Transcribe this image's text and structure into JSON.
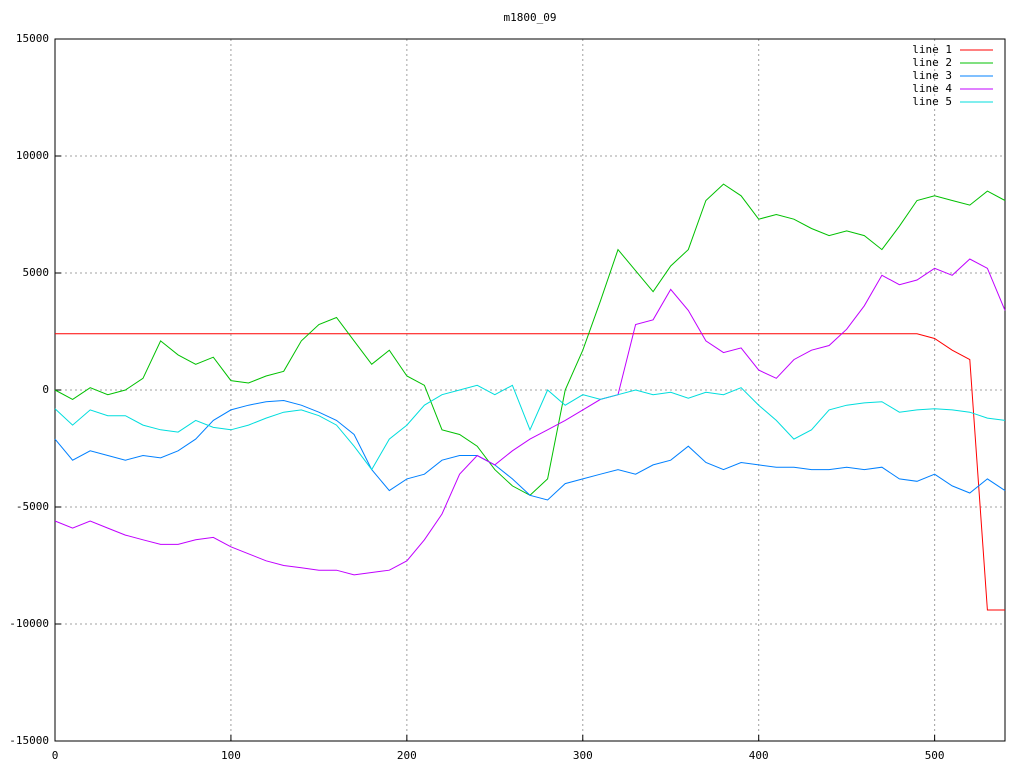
{
  "chart_data": {
    "type": "line",
    "title": "m1800_09",
    "x": [
      0,
      10,
      20,
      30,
      40,
      50,
      60,
      70,
      80,
      90,
      100,
      110,
      120,
      130,
      140,
      150,
      160,
      170,
      180,
      190,
      200,
      210,
      220,
      230,
      240,
      250,
      260,
      270,
      280,
      290,
      300,
      310,
      320,
      330,
      340,
      350,
      360,
      370,
      380,
      390,
      400,
      410,
      420,
      430,
      440,
      450,
      460,
      470,
      480,
      490,
      500,
      510,
      520,
      530,
      540
    ],
    "xlim": [
      0,
      540
    ],
    "xticks": [
      0,
      100,
      200,
      300,
      400,
      500
    ],
    "ylim": [
      -15000,
      15000
    ],
    "yticks": [
      -15000,
      -10000,
      -5000,
      0,
      5000,
      10000,
      15000
    ],
    "grid": true,
    "legend": "top-right",
    "series": [
      {
        "name": "line 1",
        "color": "#ff0000",
        "values": [
          2400,
          2400,
          2400,
          2400,
          2400,
          2400,
          2400,
          2400,
          2400,
          2400,
          2400,
          2400,
          2400,
          2400,
          2400,
          2400,
          2400,
          2400,
          2400,
          2400,
          2400,
          2400,
          2400,
          2400,
          2400,
          2400,
          2400,
          2400,
          2400,
          2400,
          2400,
          2400,
          2400,
          2400,
          2400,
          2400,
          2400,
          2400,
          2400,
          2400,
          2400,
          2400,
          2400,
          2400,
          2400,
          2400,
          2400,
          2400,
          2400,
          2400,
          2200,
          1700,
          1300,
          -9400,
          -9400
        ]
      },
      {
        "name": "line 2",
        "color": "#00c000",
        "values": [
          0,
          -400,
          100,
          -200,
          0,
          500,
          2100,
          1500,
          1100,
          1400,
          400,
          300,
          600,
          800,
          2100,
          2800,
          3100,
          2100,
          1100,
          1700,
          600,
          200,
          -1700,
          -1900,
          -2400,
          -3400,
          -4100,
          -4500,
          -3800,
          0,
          1700,
          3800,
          6000,
          5100,
          4200,
          5300,
          6000,
          8100,
          8800,
          8300,
          7300,
          7500,
          7300,
          6900,
          6600,
          6800,
          6600,
          6000,
          7000,
          8100,
          8300,
          8100,
          7900,
          8500,
          8100
        ]
      },
      {
        "name": "line 3",
        "color": "#0080ff",
        "values": [
          -2100,
          -3000,
          -2600,
          -2800,
          -3000,
          -2800,
          -2900,
          -2600,
          -2100,
          -1300,
          -850,
          -650,
          -500,
          -450,
          -650,
          -950,
          -1300,
          -1900,
          -3400,
          -4300,
          -3800,
          -3600,
          -3000,
          -2800,
          -2800,
          -3200,
          -3800,
          -4500,
          -4700,
          -4000,
          -3800,
          -3600,
          -3400,
          -3600,
          -3200,
          -3000,
          -2400,
          -3100,
          -3400,
          -3100,
          -3200,
          -3300,
          -3300,
          -3400,
          -3400,
          -3300,
          -3400,
          -3300,
          -3800,
          -3900,
          -3600,
          -4100,
          -4400,
          -3800,
          -4300
        ]
      },
      {
        "name": "line 4",
        "color": "#c000ff",
        "values": [
          -5600,
          -5900,
          -5600,
          -5900,
          -6200,
          -6400,
          -6600,
          -6600,
          -6400,
          -6300,
          -6700,
          -7000,
          -7300,
          -7500,
          -7600,
          -7700,
          -7700,
          -7900,
          -7800,
          -7700,
          -7300,
          -6400,
          -5300,
          -3600,
          -2800,
          -3200,
          -2600,
          -2100,
          -1700,
          -1300,
          -850,
          -400,
          -200,
          2800,
          3000,
          4300,
          3400,
          2100,
          1600,
          1800,
          850,
          500,
          1300,
          1700,
          1900,
          2600,
          3600,
          4900,
          4500,
          4700,
          5200,
          4900,
          5600,
          5200,
          3400
        ]
      },
      {
        "name": "line 5",
        "color": "#00dddd",
        "values": [
          -800,
          -1500,
          -850,
          -1100,
          -1100,
          -1500,
          -1700,
          -1800,
          -1300,
          -1600,
          -1700,
          -1500,
          -1200,
          -950,
          -850,
          -1100,
          -1500,
          -2400,
          -3400,
          -2100,
          -1500,
          -650,
          -200,
          0,
          200,
          -200,
          200,
          -1700,
          0,
          -650,
          -200,
          -400,
          -200,
          0,
          -200,
          -100,
          -350,
          -100,
          -200,
          100,
          -650,
          -1300,
          -2100,
          -1700,
          -850,
          -650,
          -550,
          -500,
          -950,
          -850,
          -800,
          -850,
          -950,
          -1200,
          -1300
        ]
      }
    ]
  }
}
